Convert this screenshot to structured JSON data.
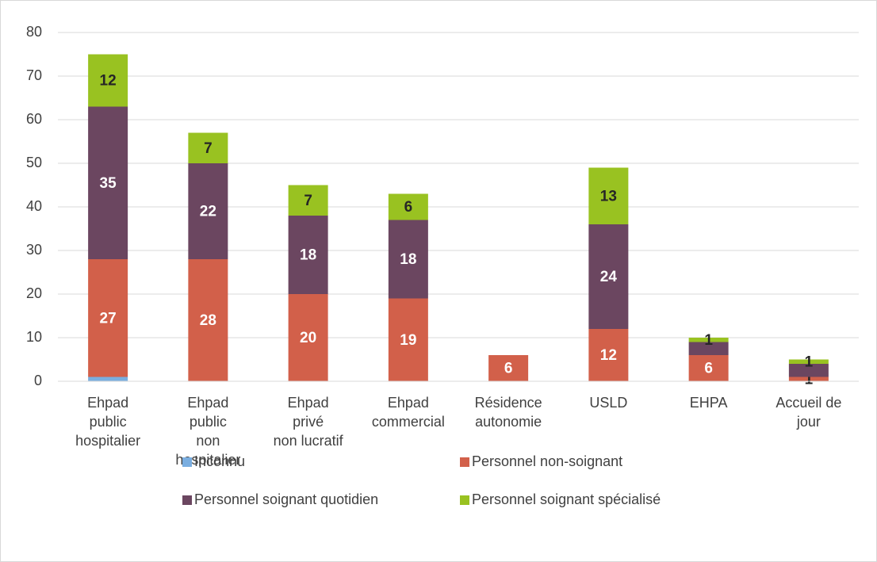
{
  "chart_data": {
    "type": "stacked_bar",
    "categories": [
      "Ehpad\npublic\nhospitalier",
      "Ehpad\npublic\nnon\nhospitalier",
      "Ehpad\nprivé\nnon lucratif",
      "Ehpad\ncommercial",
      "Résidence\nautonomie",
      "USLD",
      "EHPA",
      "Accueil de\njour"
    ],
    "series": [
      {
        "name": "Inconnu",
        "color": "#7aaee0",
        "values": [
          1,
          0,
          0,
          0,
          0,
          0,
          0,
          0
        ],
        "value_labels": [
          null,
          null,
          null,
          null,
          null,
          null,
          null,
          null
        ]
      },
      {
        "name": "Personnel non-soignant",
        "color": "#d2604a",
        "values": [
          27,
          28,
          20,
          19,
          6,
          12,
          6,
          1
        ],
        "value_labels": [
          "27",
          "28",
          "20",
          "19",
          "6",
          "12",
          "6",
          "1"
        ]
      },
      {
        "name": "Personnel soignant quotidien",
        "color": "#6b4660",
        "values": [
          35,
          22,
          18,
          18,
          0,
          24,
          3,
          3
        ],
        "value_labels": [
          "35",
          "22",
          "18",
          "18",
          null,
          "24",
          null,
          null
        ]
      },
      {
        "name": "Personnel soignant spécialisé",
        "color": "#99c221",
        "values": [
          12,
          7,
          7,
          6,
          0,
          13,
          1,
          1
        ],
        "value_labels": [
          "12",
          "7",
          "7",
          "6",
          null,
          "13",
          "1",
          "1"
        ]
      }
    ],
    "ylim": [
      0,
      80
    ],
    "yticks": [
      0,
      10,
      20,
      30,
      40,
      50,
      60,
      70,
      80
    ],
    "grid": true,
    "legend": "bottom"
  }
}
